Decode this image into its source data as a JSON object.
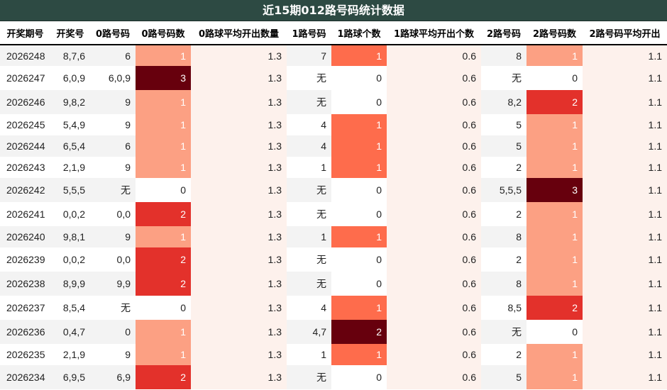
{
  "title": "近15期012路号码统计数据",
  "headers": [
    "开奖期号",
    "开奖号",
    "0路号码",
    "0路号码数",
    "0路球平均开出数量",
    "1路号码",
    "1路球个数",
    "1路球平均开出个数",
    "2路号码",
    "2路号码数",
    "2路号码平均开出"
  ],
  "heat_colors": {
    "0": "#ffffff",
    "1": "#fca083",
    "2": "#e3312b",
    "3": "#67000d"
  },
  "count_colors": {
    "0": "#ffffff",
    "1": "#fe6c4c",
    "2": "#67000d"
  },
  "rows": [
    {
      "issue": "2026248",
      "draw": "8,7,6",
      "r0": "6",
      "n0": "1",
      "avg0": "1.3",
      "r1": "7",
      "n1": "1",
      "avg1": "0.6",
      "r2": "8",
      "n2": "1",
      "avg2": "1.1"
    },
    {
      "issue": "2026247",
      "draw": "6,0,9",
      "r0": "6,0,9",
      "n0": "3",
      "avg0": "1.3",
      "r1": "无",
      "n1": "0",
      "avg1": "0.6",
      "r2": "无",
      "n2": "0",
      "avg2": "1.1"
    },
    {
      "issue": "2026246",
      "draw": "9,8,2",
      "r0": "9",
      "n0": "1",
      "avg0": "1.3",
      "r1": "无",
      "n1": "0",
      "avg1": "0.6",
      "r2": "8,2",
      "n2": "2",
      "avg2": "1.1"
    },
    {
      "issue": "2026245",
      "draw": "5,4,9",
      "r0": "9",
      "n0": "1",
      "avg0": "1.3",
      "r1": "4",
      "n1": "1",
      "avg1": "0.6",
      "r2": "5",
      "n2": "1",
      "avg2": "1.1"
    },
    {
      "issue": "2026244",
      "draw": "6,5,4",
      "r0": "6",
      "n0": "1",
      "avg0": "1.3",
      "r1": "4",
      "n1": "1",
      "avg1": "0.6",
      "r2": "5",
      "n2": "1",
      "avg2": "1.1"
    },
    {
      "issue": "2026243",
      "draw": "2,1,9",
      "r0": "9",
      "n0": "1",
      "avg0": "1.3",
      "r1": "1",
      "n1": "1",
      "avg1": "0.6",
      "r2": "2",
      "n2": "1",
      "avg2": "1.1"
    },
    {
      "issue": "2026242",
      "draw": "5,5,5",
      "r0": "无",
      "n0": "0",
      "avg0": "1.3",
      "r1": "无",
      "n1": "0",
      "avg1": "0.6",
      "r2": "5,5,5",
      "n2": "3",
      "avg2": "1.1"
    },
    {
      "issue": "2026241",
      "draw": "0,0,2",
      "r0": "0,0",
      "n0": "2",
      "avg0": "1.3",
      "r1": "无",
      "n1": "0",
      "avg1": "0.6",
      "r2": "2",
      "n2": "1",
      "avg2": "1.1"
    },
    {
      "issue": "2026240",
      "draw": "9,8,1",
      "r0": "9",
      "n0": "1",
      "avg0": "1.3",
      "r1": "1",
      "n1": "1",
      "avg1": "0.6",
      "r2": "8",
      "n2": "1",
      "avg2": "1.1"
    },
    {
      "issue": "2026239",
      "draw": "0,0,2",
      "r0": "0,0",
      "n0": "2",
      "avg0": "1.3",
      "r1": "无",
      "n1": "0",
      "avg1": "0.6",
      "r2": "2",
      "n2": "1",
      "avg2": "1.1"
    },
    {
      "issue": "2026238",
      "draw": "8,9,9",
      "r0": "9,9",
      "n0": "2",
      "avg0": "1.3",
      "r1": "无",
      "n1": "0",
      "avg1": "0.6",
      "r2": "8",
      "n2": "1",
      "avg2": "1.1"
    },
    {
      "issue": "2026237",
      "draw": "8,5,4",
      "r0": "无",
      "n0": "0",
      "avg0": "1.3",
      "r1": "4",
      "n1": "1",
      "avg1": "0.6",
      "r2": "8,5",
      "n2": "2",
      "avg2": "1.1"
    },
    {
      "issue": "2026236",
      "draw": "0,4,7",
      "r0": "0",
      "n0": "1",
      "avg0": "1.3",
      "r1": "4,7",
      "n1": "2",
      "avg1": "0.6",
      "r2": "无",
      "n2": "0",
      "avg2": "1.1"
    },
    {
      "issue": "2026235",
      "draw": "2,1,9",
      "r0": "9",
      "n0": "1",
      "avg0": "1.3",
      "r1": "1",
      "n1": "1",
      "avg1": "0.6",
      "r2": "2",
      "n2": "1",
      "avg2": "1.1"
    },
    {
      "issue": "2026234",
      "draw": "6,9,5",
      "r0": "6,9",
      "n0": "2",
      "avg0": "1.3",
      "r1": "无",
      "n1": "0",
      "avg1": "0.6",
      "r2": "5",
      "n2": "1",
      "avg2": "1.1"
    }
  ]
}
